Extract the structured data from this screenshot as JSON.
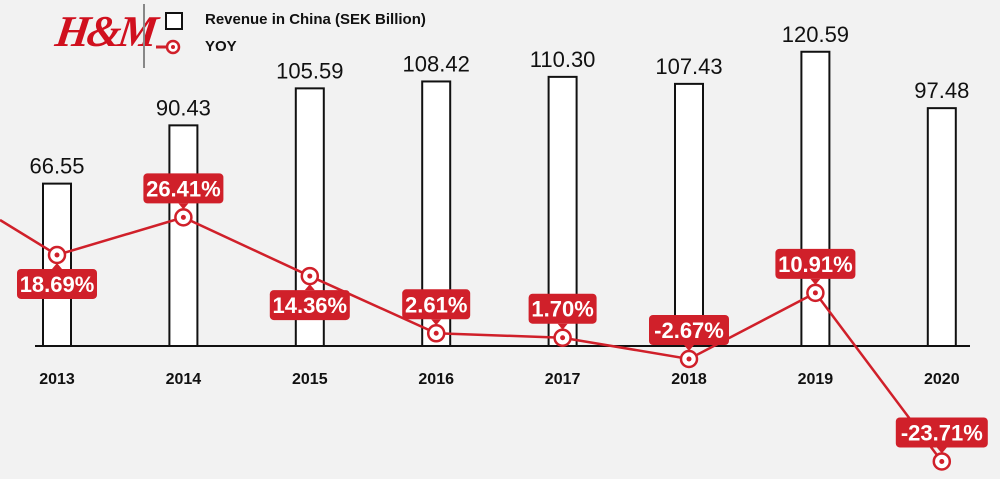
{
  "brand": {
    "logo_text": "H&M",
    "color": "#d0101e"
  },
  "chart_data": {
    "type": "bar+line",
    "categories": [
      "2013",
      "2014",
      "2015",
      "2016",
      "2017",
      "2018",
      "2019",
      "2020"
    ],
    "series": [
      {
        "name": "Revenue in China (SEK Billion)",
        "type": "bar",
        "values": [
          66.55,
          90.43,
          105.59,
          108.42,
          110.3,
          107.43,
          120.59,
          97.48
        ],
        "labels": [
          "66.55",
          "90.43",
          "105.59",
          "108.42",
          "110.30",
          "107.43",
          "120.59",
          "97.48"
        ],
        "color": "#ffffff"
      },
      {
        "name": "YOY",
        "type": "line",
        "values": [
          18.69,
          26.41,
          14.36,
          2.61,
          1.7,
          -2.67,
          10.91,
          -23.71
        ],
        "labels": [
          "18.69%",
          "26.41%",
          "14.36%",
          "2.61%",
          "1.70%",
          "-2.67%",
          "10.91%",
          "-23.71%"
        ],
        "color": "#d0202a"
      }
    ],
    "legend": "top-left",
    "grid": false
  }
}
